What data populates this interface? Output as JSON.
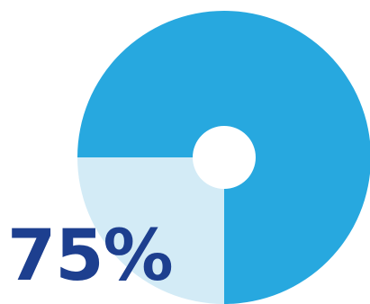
{
  "chart_data": {
    "type": "pie",
    "style": "donut",
    "slices": [
      {
        "value": 75,
        "color": "#27a8df"
      },
      {
        "value": 25,
        "color": "#d3ebf6"
      }
    ]
  },
  "label": {
    "text": "75%",
    "color": "#1d3f8f"
  }
}
